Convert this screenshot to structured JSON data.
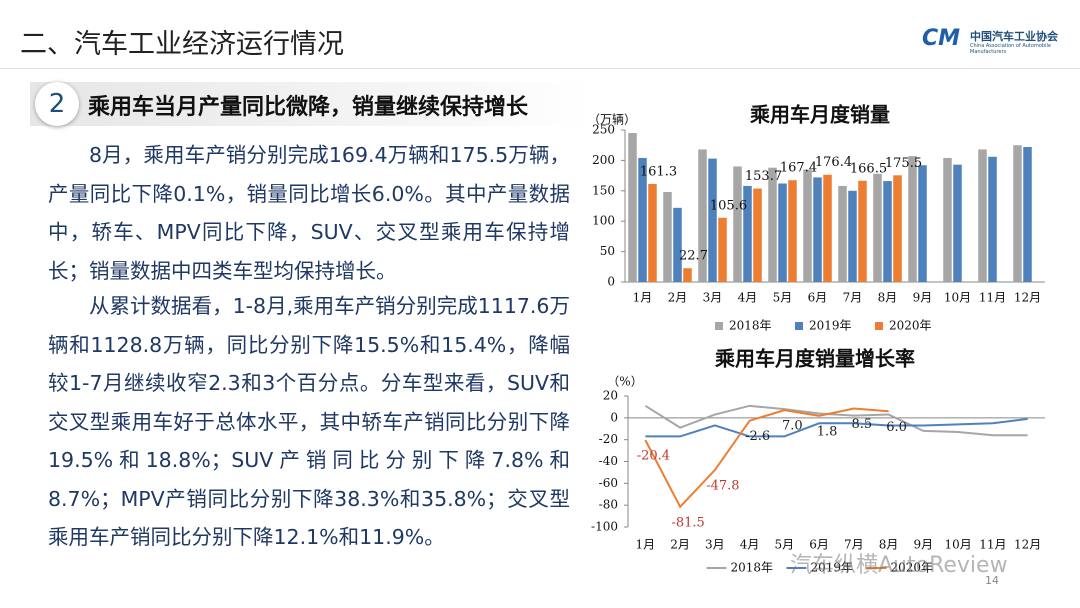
{
  "header": {
    "title": "二、汽车工业经济运行情况",
    "logo_mark": "CM",
    "logo_name": "中国汽车工业协会",
    "logo_name_en": "China Association of Automobile Manufacturers"
  },
  "section": {
    "number": "2",
    "title": "乘用车当月产量同比微降，销量继续保持增长"
  },
  "paragraphs": [
    "8月，乘用车产销分别完成169.4万辆和175.5万辆，产量同比下降0.1%，销量同比增长6.0%。其中产量数据中，轿车、MPV同比下降，SUV、交叉型乘用车保持增长；销量数据中四类车型均保持增长。",
    "从累计数据看，1-8月,乘用车产销分别完成1117.6万辆和1128.8万辆，同比分别下降15.5%和15.4%，降幅较1-7月继续收窄2.3和3个百分点。分车型来看，SUV和交叉型乘用车好于总体水平，其中轿车产销同比分别下降19.5%和18.8%；SUV产销同比分别下降7.8%和8.7%；MPV产销同比分别下降38.3%和35.8%；交叉型乘用车产销同比分别下降12.1%和11.9%。"
  ],
  "chart_data": [
    {
      "type": "bar",
      "title": "乘用车月度销量",
      "y_label": "（万辆）",
      "categories": [
        "1月",
        "2月",
        "3月",
        "4月",
        "5月",
        "6月",
        "7月",
        "8月",
        "9月",
        "10月",
        "11月",
        "12月"
      ],
      "series": [
        {
          "name": "2018年",
          "color": "#a6a6a6",
          "values": [
            245,
            148,
            218,
            190,
            188,
            185,
            158,
            178,
            207,
            204,
            218,
            225
          ]
        },
        {
          "name": "2019年",
          "color": "#4f81bd",
          "values": [
            204,
            122,
            203,
            158,
            162,
            172,
            150,
            166,
            192,
            193,
            206,
            222
          ]
        },
        {
          "name": "2020年",
          "color": "#ed7d31",
          "values": [
            161.3,
            22.7,
            105.6,
            153.7,
            167.4,
            176.4,
            166.5,
            175.5,
            null,
            null,
            null,
            null
          ]
        }
      ],
      "ylim": [
        0,
        250
      ],
      "yticks": [
        0,
        50,
        100,
        150,
        200,
        250
      ],
      "legend": "bottom"
    },
    {
      "type": "line",
      "title": "乘用车月度销量增长率",
      "y_label": "（%）",
      "categories": [
        "1月",
        "2月",
        "3月",
        "4月",
        "5月",
        "6月",
        "7月",
        "8月",
        "9月",
        "10月",
        "11月",
        "12月"
      ],
      "series": [
        {
          "name": "2018年",
          "color": "#a6a6a6",
          "values": [
            11,
            -9,
            3,
            11,
            8,
            4,
            2,
            3,
            -12,
            -13,
            -16,
            -16
          ]
        },
        {
          "name": "2019年",
          "color": "#4f81bd",
          "values": [
            -17,
            -17,
            -7,
            -17,
            -17,
            -5,
            -5,
            -7,
            -7,
            -6,
            -5,
            -1
          ]
        },
        {
          "name": "2020年",
          "color": "#ed7d31",
          "values": [
            -20.4,
            -81.5,
            -47.8,
            -2.6,
            7,
            1.8,
            8.5,
            6,
            null,
            null,
            null,
            null
          ],
          "value_labels": [
            "-20.4",
            "-81.5",
            "-47.8",
            "-2.6",
            "7.0",
            "1.8",
            "8.5",
            "6.0",
            null,
            null,
            null,
            null
          ]
        }
      ],
      "ylim": [
        -100,
        20
      ],
      "yticks": [
        20,
        0,
        -20,
        -40,
        -60,
        -80,
        -100
      ],
      "legend": "bottom"
    }
  ],
  "watermark": "汽车纵横AutoReview",
  "page_number": "14"
}
